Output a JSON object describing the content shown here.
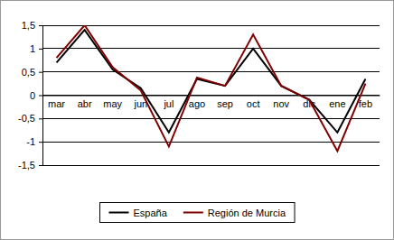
{
  "chart_data": {
    "type": "line",
    "categories": [
      "mar",
      "abr",
      "may",
      "jun",
      "jul",
      "ago",
      "sep",
      "oct",
      "nov",
      "dic",
      "ene",
      "feb"
    ],
    "series": [
      {
        "name": "España",
        "color": "#000000",
        "values": [
          0.7,
          1.4,
          0.55,
          0.15,
          -0.8,
          0.35,
          0.2,
          1.0,
          0.2,
          -0.1,
          -0.8,
          0.35
        ]
      },
      {
        "name": "Región de Murcia",
        "color": "#800000",
        "values": [
          0.8,
          1.5,
          0.6,
          0.1,
          -1.1,
          0.38,
          0.2,
          1.3,
          0.2,
          -0.1,
          -1.2,
          0.25
        ]
      }
    ],
    "ylim": [
      -1.5,
      1.5
    ],
    "yticks": [
      {
        "value": -1.5,
        "label": "-1,5"
      },
      -1,
      {
        "value": -0.5,
        "label": "-0,5"
      },
      0,
      {
        "value": 0.5,
        "label": "0,5"
      },
      1,
      {
        "value": 1.5,
        "label": "1,5"
      }
    ],
    "grid": true,
    "legend": "bottom"
  }
}
